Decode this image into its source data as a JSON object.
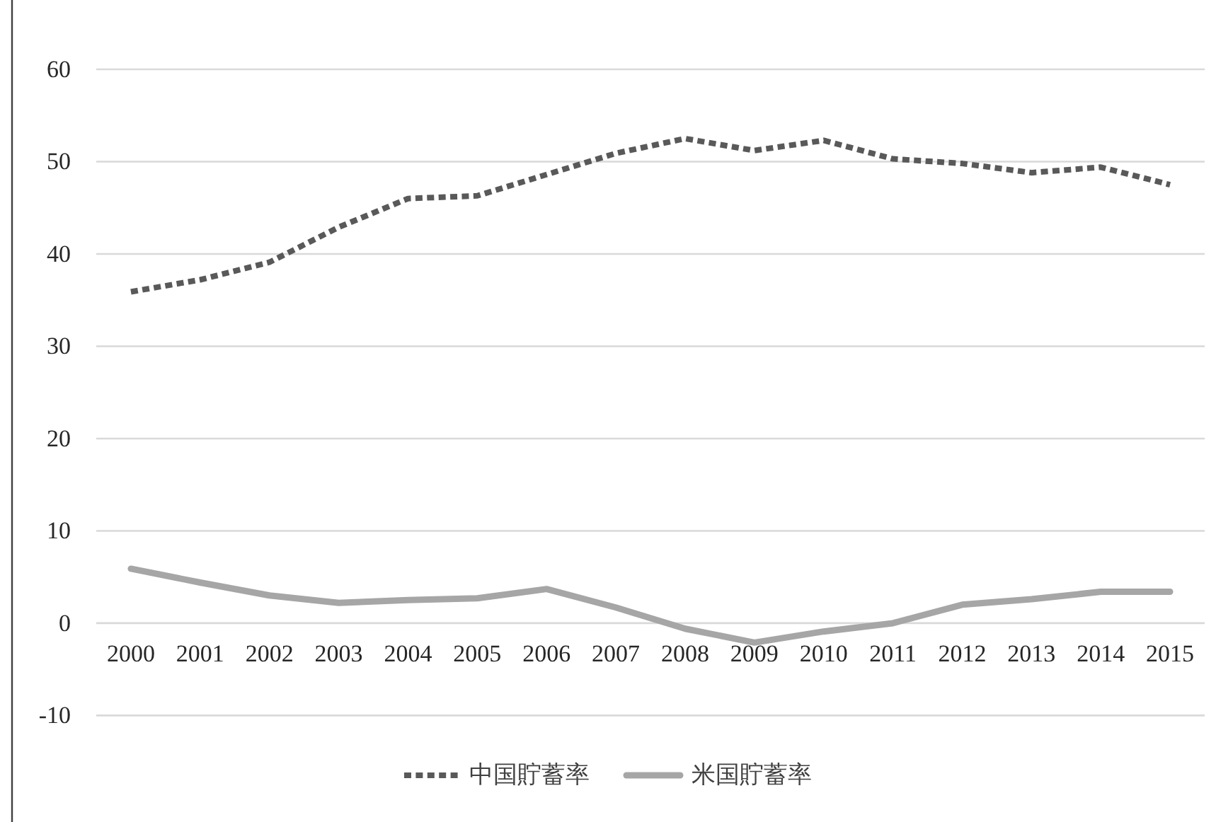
{
  "chart_data": {
    "type": "line",
    "categories": [
      "2000",
      "2001",
      "2002",
      "2003",
      "2004",
      "2005",
      "2006",
      "2007",
      "2008",
      "2009",
      "2010",
      "2011",
      "2012",
      "2013",
      "2014",
      "2015"
    ],
    "series": [
      {
        "name": "中国貯蓄率",
        "color": "#595959",
        "line_style": "dotted",
        "values": [
          35.9,
          37.2,
          39.1,
          42.9,
          46.0,
          46.3,
          48.6,
          50.9,
          52.5,
          51.2,
          52.3,
          50.3,
          49.8,
          48.8,
          49.4,
          47.5
        ]
      },
      {
        "name": "米国貯蓄率",
        "color": "#a6a6a6",
        "line_style": "solid",
        "values": [
          5.9,
          4.4,
          3.0,
          2.2,
          2.5,
          2.7,
          3.7,
          1.7,
          -0.6,
          -2.1,
          -0.9,
          0.0,
          2.0,
          2.6,
          3.4,
          3.4
        ]
      }
    ],
    "ylim": [
      -10,
      60
    ],
    "yticks": [
      -10,
      0,
      10,
      20,
      30,
      40,
      50,
      60
    ],
    "grid": "y",
    "legend": "bottom"
  }
}
